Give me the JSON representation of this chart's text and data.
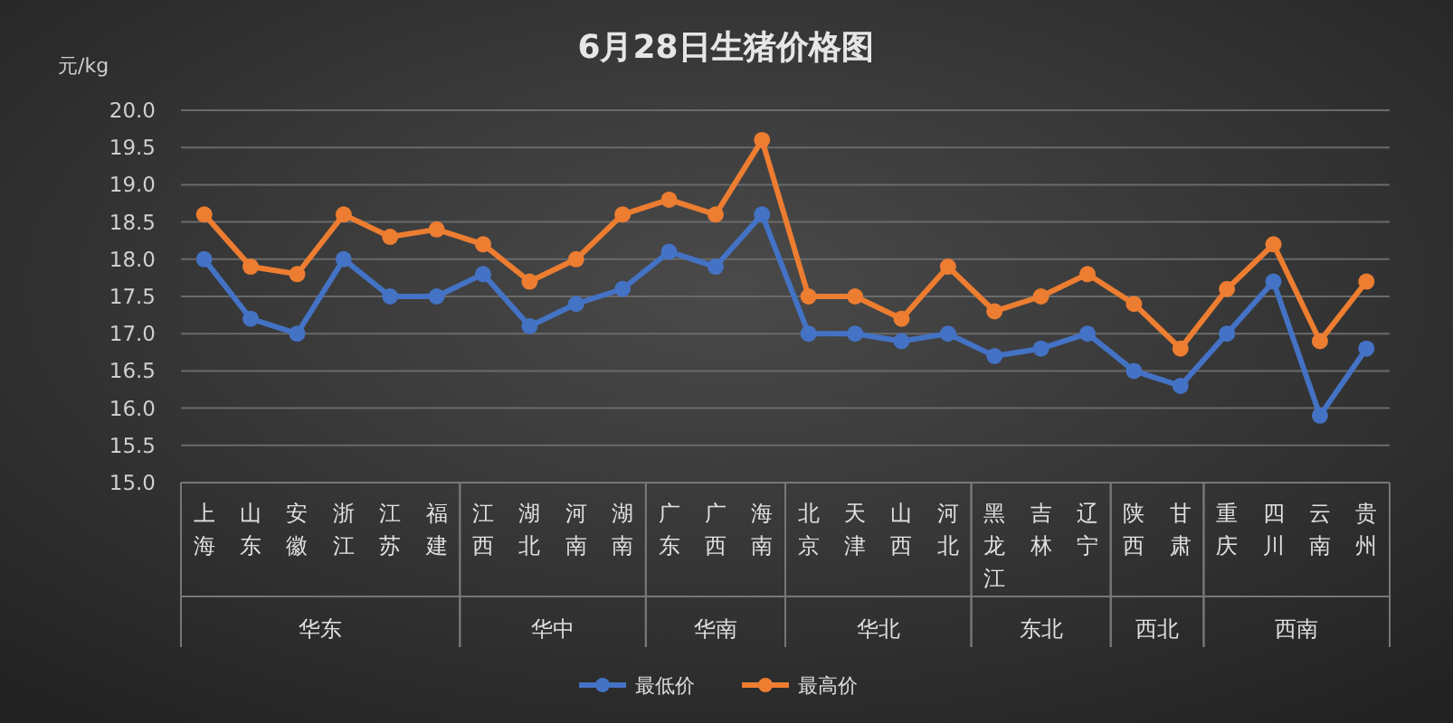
{
  "chart_data": {
    "type": "line",
    "title": "6月28日生猪价格图",
    "ylabel": "元/kg",
    "categories": [
      "上海",
      "山东",
      "安徽",
      "浙江",
      "江苏",
      "福建",
      "江西",
      "湖北",
      "河南",
      "湖南",
      "广东",
      "广西",
      "海南",
      "北京",
      "天津",
      "山西",
      "河北",
      "黑龙江",
      "吉林",
      "辽宁",
      "陕西",
      "甘肃",
      "重庆",
      "四川",
      "云南",
      "贵州"
    ],
    "series": [
      {
        "name": "最低价",
        "color": "#4472c4",
        "values": [
          18.0,
          17.2,
          17.0,
          18.0,
          17.5,
          17.5,
          17.8,
          17.1,
          17.4,
          17.6,
          18.1,
          17.9,
          18.6,
          17.0,
          17.0,
          16.9,
          17.0,
          16.7,
          16.8,
          17.0,
          16.5,
          16.3,
          17.0,
          17.7,
          15.9,
          16.8
        ]
      },
      {
        "name": "最高价",
        "color": "#ed7d31",
        "values": [
          18.6,
          17.9,
          17.8,
          18.6,
          18.3,
          18.4,
          18.2,
          17.7,
          18.0,
          18.6,
          18.8,
          18.6,
          19.6,
          17.5,
          17.5,
          17.2,
          17.9,
          17.3,
          17.5,
          17.8,
          17.4,
          16.8,
          17.6,
          18.2,
          16.9,
          17.7
        ]
      }
    ],
    "annotations": [
      "华东",
      "华中",
      "华南",
      "华北",
      "东北",
      "西北",
      "西南"
    ],
    "ylim": [
      15.0,
      20.0
    ],
    "yticks": [
      {
        "value": 15.0,
        "label": "15.0"
      },
      {
        "value": 15.5,
        "label": "15.5"
      },
      {
        "value": 16.0,
        "label": "16.0"
      },
      {
        "value": 16.5,
        "label": "16.5"
      },
      {
        "value": 17.0,
        "label": "17.0"
      },
      {
        "value": 17.5,
        "label": "17.5"
      },
      {
        "value": 18.0,
        "label": "18.0"
      },
      {
        "value": 18.5,
        "label": "18.5"
      },
      {
        "value": 19.0,
        "label": "19.0"
      },
      {
        "value": 19.5,
        "label": "19.5"
      },
      {
        "value": 20.0,
        "label": "20.0"
      }
    ],
    "grid": "y",
    "legend": "bottom",
    "marker": "circle",
    "line_style": "solid"
  }
}
